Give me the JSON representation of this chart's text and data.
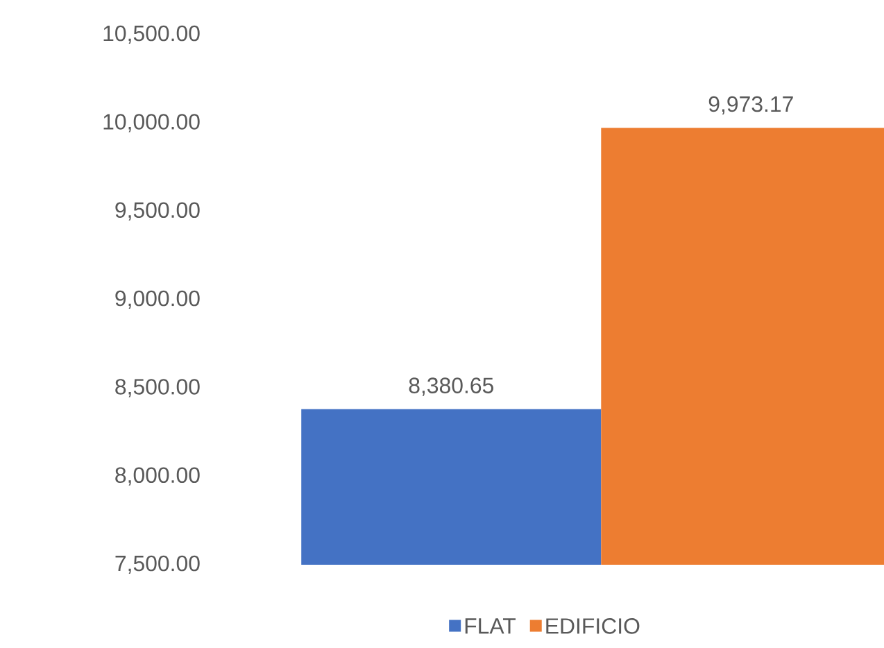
{
  "chart_data": {
    "type": "bar",
    "categories": [
      null
    ],
    "series": [
      {
        "name": "FLAT",
        "color": "#4472c4",
        "values": [
          8380.65
        ],
        "value_labels": [
          "8,380.65"
        ]
      },
      {
        "name": "EDIFICIO",
        "color": "#ed7d31",
        "values": [
          9973.17
        ],
        "value_labels": [
          "9,973.17"
        ]
      }
    ],
    "ylim": [
      7500,
      10500
    ],
    "yticks": [
      {
        "value": 7500,
        "label": "7,500.00"
      },
      {
        "value": 8000,
        "label": "8,000.00"
      },
      {
        "value": 8500,
        "label": "8,500.00"
      },
      {
        "value": 9000,
        "label": "9,000.00"
      },
      {
        "value": 9500,
        "label": "9,500.00"
      },
      {
        "value": 10000,
        "label": "10,000.00"
      },
      {
        "value": 10500,
        "label": "10,500.00"
      }
    ],
    "grid": false,
    "legend": "bottom"
  }
}
